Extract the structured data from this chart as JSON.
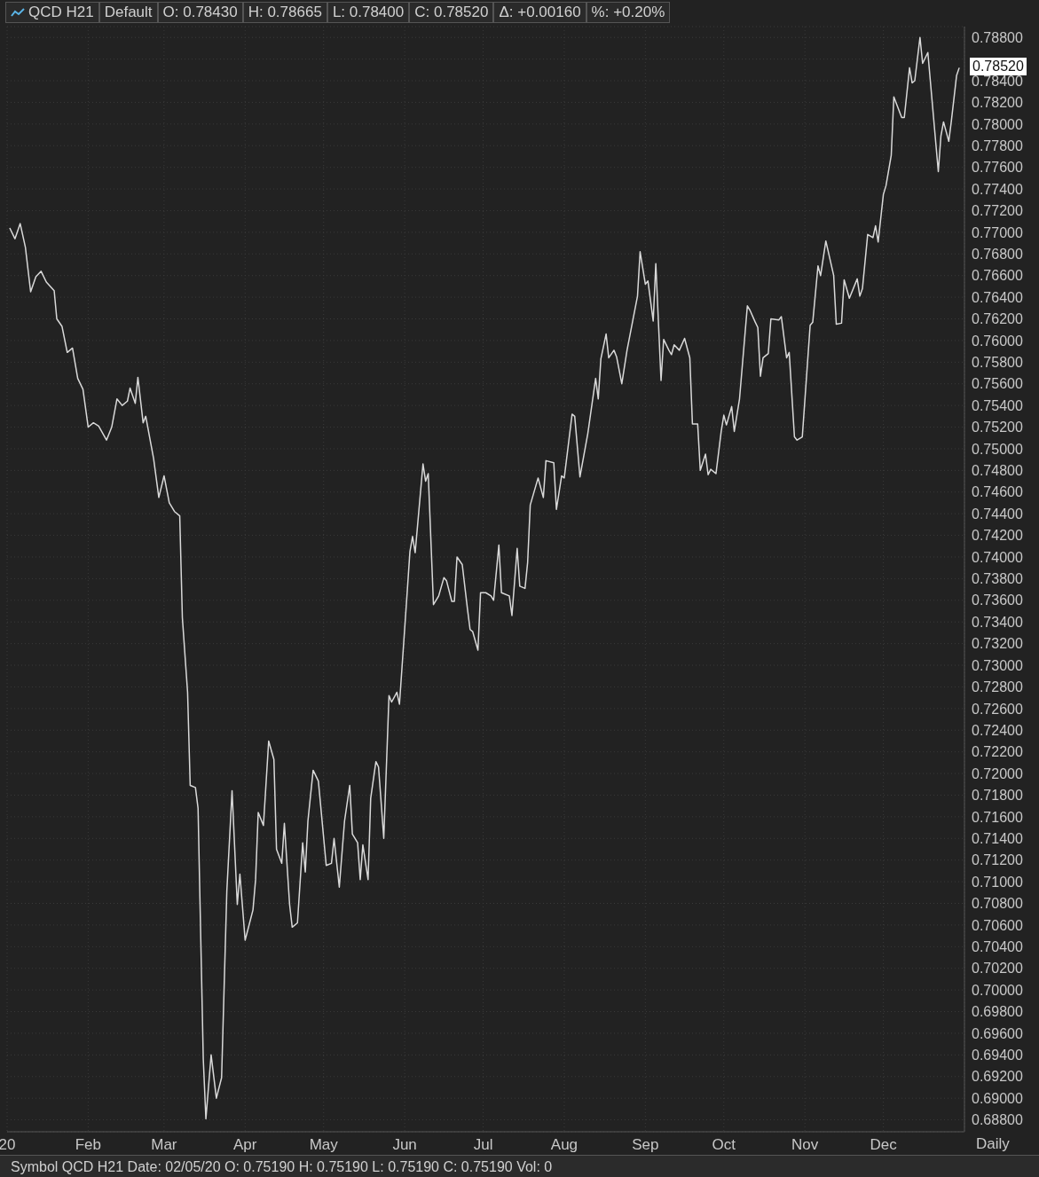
{
  "chart_data": {
    "type": "line",
    "title": "QCD H21",
    "annotations": [
      "Default",
      "O: 0.78430",
      "H: 0.78665",
      "L: 0.78400",
      "C: 0.78520",
      "Δ: +0.00160",
      "%: +0.20%",
      "Daily",
      "Symbol QCD H21 Date: 02/05/20 O: 0.75190 H: 0.75190 L: 0.75190 C: 0.75190 Vol: 0",
      "0.78520"
    ],
    "x": [
      "2020-01-02",
      "2020-01-04",
      "2020-01-06",
      "2020-01-08",
      "2020-01-10",
      "2020-01-12",
      "2020-01-14",
      "2020-01-16",
      "2020-01-19",
      "2020-01-20",
      "2020-01-22",
      "2020-01-24",
      "2020-01-26",
      "2020-01-28",
      "2020-01-30",
      "2020-02-01",
      "2020-02-03",
      "2020-02-05",
      "2020-02-08",
      "2020-02-10",
      "2020-02-12",
      "2020-02-14",
      "2020-02-16",
      "2020-02-17",
      "2020-02-19",
      "2020-02-20",
      "2020-02-22",
      "2020-02-23",
      "2020-02-26",
      "2020-02-28",
      "2020-03-01",
      "2020-03-03",
      "2020-03-05",
      "2020-03-07",
      "2020-03-08",
      "2020-03-10",
      "2020-03-11",
      "2020-03-13",
      "2020-03-14",
      "2020-03-16",
      "2020-03-17",
      "2020-03-19",
      "2020-03-21",
      "2020-03-23",
      "2020-03-25",
      "2020-03-27",
      "2020-03-29",
      "2020-03-30",
      "2020-04-01",
      "2020-04-04",
      "2020-04-05",
      "2020-04-06",
      "2020-04-08",
      "2020-04-10",
      "2020-04-12",
      "2020-04-13",
      "2020-04-15",
      "2020-04-16",
      "2020-04-18",
      "2020-04-19",
      "2020-04-21",
      "2020-04-23",
      "2020-04-24",
      "2020-04-25",
      "2020-04-27",
      "2020-04-29",
      "2020-05-02",
      "2020-05-04",
      "2020-05-05",
      "2020-05-07",
      "2020-05-09",
      "2020-05-11",
      "2020-05-12",
      "2020-05-14",
      "2020-05-15",
      "2020-05-16",
      "2020-05-18",
      "2020-05-19",
      "2020-05-21",
      "2020-05-22",
      "2020-05-24",
      "2020-05-26",
      "2020-05-27",
      "2020-05-29",
      "2020-05-30",
      "2020-06-02",
      "2020-06-03",
      "2020-06-04",
      "2020-06-05",
      "2020-06-08",
      "2020-06-09",
      "2020-06-10",
      "2020-06-12",
      "2020-06-14",
      "2020-06-16",
      "2020-06-17",
      "2020-06-19",
      "2020-06-20",
      "2020-06-21",
      "2020-06-23",
      "2020-06-25",
      "2020-06-26",
      "2020-06-27",
      "2020-06-29",
      "2020-06-30",
      "2020-07-02",
      "2020-07-04",
      "2020-07-05",
      "2020-07-07",
      "2020-07-08",
      "2020-07-11",
      "2020-07-12",
      "2020-07-14",
      "2020-07-15",
      "2020-07-17",
      "2020-07-18",
      "2020-07-19",
      "2020-07-22",
      "2020-07-24",
      "2020-07-25",
      "2020-07-28",
      "2020-07-29",
      "2020-07-31",
      "2020-08-01",
      "2020-08-04",
      "2020-08-05",
      "2020-08-07",
      "2020-08-10",
      "2020-08-13",
      "2020-08-14",
      "2020-08-15",
      "2020-08-17",
      "2020-08-18",
      "2020-08-20",
      "2020-08-21",
      "2020-08-23",
      "2020-08-25",
      "2020-08-29",
      "2020-08-30",
      "2020-09-01",
      "2020-09-02",
      "2020-09-04",
      "2020-09-05",
      "2020-09-07",
      "2020-09-08",
      "2020-09-10",
      "2020-09-11",
      "2020-09-12",
      "2020-09-14",
      "2020-09-16",
      "2020-09-18",
      "2020-09-19",
      "2020-09-21",
      "2020-09-22",
      "2020-09-24",
      "2020-09-25",
      "2020-09-26",
      "2020-09-28",
      "2020-09-30",
      "2020-10-01",
      "2020-10-02",
      "2020-10-04",
      "2020-10-05",
      "2020-10-07",
      "2020-10-10",
      "2020-10-11",
      "2020-10-13",
      "2020-10-14",
      "2020-10-15",
      "2020-10-16",
      "2020-10-18",
      "2020-10-19",
      "2020-10-22",
      "2020-10-23",
      "2020-10-25",
      "2020-10-26",
      "2020-10-28",
      "2020-10-29",
      "2020-10-31",
      "2020-11-03",
      "2020-11-04",
      "2020-11-06",
      "2020-11-07",
      "2020-11-09",
      "2020-11-12",
      "2020-11-13",
      "2020-11-15",
      "2020-11-16",
      "2020-11-18",
      "2020-11-21",
      "2020-11-22",
      "2020-11-23",
      "2020-11-25",
      "2020-11-27",
      "2020-11-28",
      "2020-11-29",
      "2020-12-01",
      "2020-12-02",
      "2020-12-04",
      "2020-12-05",
      "2020-12-08",
      "2020-12-09",
      "2020-12-11",
      "2020-12-12",
      "2020-12-13",
      "2020-12-15",
      "2020-12-16",
      "2020-12-18",
      "2020-12-22",
      "2020-12-23",
      "2020-12-24",
      "2020-12-26",
      "2020-12-27",
      "2020-12-29",
      "2020-12-30"
    ],
    "series": [
      {
        "color": "#d9d9d9",
        "values": [
          0.7704,
          0.7694,
          0.7708,
          0.7686,
          0.7645,
          0.7659,
          0.7664,
          0.7654,
          0.7646,
          0.762,
          0.7613,
          0.7589,
          0.7593,
          0.7565,
          0.7555,
          0.752,
          0.7524,
          0.7521,
          0.7508,
          0.752,
          0.7546,
          0.754,
          0.7544,
          0.7556,
          0.7542,
          0.7566,
          0.7524,
          0.753,
          0.7491,
          0.7455,
          0.7475,
          0.745,
          0.7442,
          0.7438,
          0.7344,
          0.7275,
          0.7189,
          0.7187,
          0.7168,
          0.6936,
          0.6881,
          0.694,
          0.69,
          0.6919,
          0.7091,
          0.7184,
          0.7079,
          0.7107,
          0.7046,
          0.7074,
          0.7102,
          0.7164,
          0.7152,
          0.723,
          0.7213,
          0.713,
          0.7117,
          0.7154,
          0.7079,
          0.7058,
          0.7062,
          0.7136,
          0.7109,
          0.7156,
          0.7203,
          0.7193,
          0.7115,
          0.7117,
          0.714,
          0.7095,
          0.7156,
          0.7189,
          0.7144,
          0.7136,
          0.7102,
          0.7134,
          0.7102,
          0.7177,
          0.7211,
          0.7206,
          0.714,
          0.7272,
          0.7266,
          0.7275,
          0.7264,
          0.7369,
          0.7405,
          0.7419,
          0.7404,
          0.7486,
          0.747,
          0.7477,
          0.7356,
          0.7364,
          0.7381,
          0.7378,
          0.7359,
          0.7359,
          0.74,
          0.7393,
          0.7352,
          0.7333,
          0.7331,
          0.7314,
          0.7367,
          0.7367,
          0.7364,
          0.736,
          0.7411,
          0.7367,
          0.7364,
          0.7346,
          0.7408,
          0.7373,
          0.7371,
          0.7395,
          0.7448,
          0.7473,
          0.7455,
          0.7489,
          0.7487,
          0.7444,
          0.7475,
          0.7473,
          0.7532,
          0.753,
          0.7474,
          0.7514,
          0.7565,
          0.7546,
          0.7583,
          0.7606,
          0.7584,
          0.7591,
          0.7585,
          0.756,
          0.7591,
          0.7641,
          0.7682,
          0.7652,
          0.7655,
          0.7618,
          0.7671,
          0.7563,
          0.7601,
          0.7591,
          0.7587,
          0.7596,
          0.7591,
          0.7602,
          0.7584,
          0.7523,
          0.7523,
          0.748,
          0.7495,
          0.7476,
          0.7481,
          0.7477,
          0.7516,
          0.7531,
          0.7522,
          0.7539,
          0.7516,
          0.7546,
          0.7632,
          0.7628,
          0.7617,
          0.7612,
          0.7567,
          0.7584,
          0.7588,
          0.762,
          0.7619,
          0.7622,
          0.7584,
          0.7589,
          0.7511,
          0.7508,
          0.7511,
          0.7614,
          0.7617,
          0.7669,
          0.766,
          0.7692,
          0.766,
          0.7615,
          0.7616,
          0.7656,
          0.7639,
          0.7657,
          0.7641,
          0.7648,
          0.7698,
          0.7695,
          0.7706,
          0.7691,
          0.7735,
          0.7743,
          0.7771,
          0.7825,
          0.7806,
          0.7806,
          0.7852,
          0.7838,
          0.784,
          0.788,
          0.7856,
          0.7866,
          0.7756,
          0.7789,
          0.7802,
          0.7784,
          0.7803,
          0.7845,
          0.7852
        ]
      }
    ],
    "xlim": [
      "2020-01-01",
      "2021-01-01"
    ],
    "xticks": [
      {
        "value": "2020-01-01",
        "label": "20"
      },
      {
        "value": "2020-02-01",
        "label": "Feb"
      },
      {
        "value": "2020-03-01",
        "label": "Mar"
      },
      {
        "value": "2020-04-01",
        "label": "Apr"
      },
      {
        "value": "2020-05-01",
        "label": "May"
      },
      {
        "value": "2020-06-01",
        "label": "Jun"
      },
      {
        "value": "2020-07-01",
        "label": "Jul"
      },
      {
        "value": "2020-08-01",
        "label": "Aug"
      },
      {
        "value": "2020-09-01",
        "label": "Sep"
      },
      {
        "value": "2020-10-01",
        "label": "Oct"
      },
      {
        "value": "2020-11-01",
        "label": "Nov"
      },
      {
        "value": "2020-12-01",
        "label": "Dec"
      }
    ],
    "ylim": [
      0.6869,
      0.789
    ],
    "yticks": [
      {
        "value": 0.688,
        "label": "0.68800"
      },
      {
        "value": 0.69,
        "label": "0.69000"
      },
      {
        "value": 0.692,
        "label": "0.69200"
      },
      {
        "value": 0.694,
        "label": "0.69400"
      },
      {
        "value": 0.696,
        "label": "0.69600"
      },
      {
        "value": 0.698,
        "label": "0.69800"
      },
      {
        "value": 0.7,
        "label": "0.70000"
      },
      {
        "value": 0.702,
        "label": "0.70200"
      },
      {
        "value": 0.704,
        "label": "0.70400"
      },
      {
        "value": 0.706,
        "label": "0.70600"
      },
      {
        "value": 0.708,
        "label": "0.70800"
      },
      {
        "value": 0.71,
        "label": "0.71000"
      },
      {
        "value": 0.712,
        "label": "0.71200"
      },
      {
        "value": 0.714,
        "label": "0.71400"
      },
      {
        "value": 0.716,
        "label": "0.71600"
      },
      {
        "value": 0.718,
        "label": "0.71800"
      },
      {
        "value": 0.72,
        "label": "0.72000"
      },
      {
        "value": 0.722,
        "label": "0.72200"
      },
      {
        "value": 0.724,
        "label": "0.72400"
      },
      {
        "value": 0.726,
        "label": "0.72600"
      },
      {
        "value": 0.728,
        "label": "0.72800"
      },
      {
        "value": 0.73,
        "label": "0.73000"
      },
      {
        "value": 0.732,
        "label": "0.73200"
      },
      {
        "value": 0.734,
        "label": "0.73400"
      },
      {
        "value": 0.736,
        "label": "0.73600"
      },
      {
        "value": 0.738,
        "label": "0.73800"
      },
      {
        "value": 0.74,
        "label": "0.74000"
      },
      {
        "value": 0.742,
        "label": "0.74200"
      },
      {
        "value": 0.744,
        "label": "0.74400"
      },
      {
        "value": 0.746,
        "label": "0.74600"
      },
      {
        "value": 0.748,
        "label": "0.74800"
      },
      {
        "value": 0.75,
        "label": "0.75000"
      },
      {
        "value": 0.752,
        "label": "0.75200"
      },
      {
        "value": 0.754,
        "label": "0.75400"
      },
      {
        "value": 0.756,
        "label": "0.75600"
      },
      {
        "value": 0.758,
        "label": "0.75800"
      },
      {
        "value": 0.76,
        "label": "0.76000"
      },
      {
        "value": 0.762,
        "label": "0.76200"
      },
      {
        "value": 0.764,
        "label": "0.76400"
      },
      {
        "value": 0.766,
        "label": "0.76600"
      },
      {
        "value": 0.768,
        "label": "0.76800"
      },
      {
        "value": 0.77,
        "label": "0.77000"
      },
      {
        "value": 0.772,
        "label": "0.77200"
      },
      {
        "value": 0.774,
        "label": "0.77400"
      },
      {
        "value": 0.776,
        "label": "0.77600"
      },
      {
        "value": 0.778,
        "label": "0.77800"
      },
      {
        "value": 0.78,
        "label": "0.78000"
      },
      {
        "value": 0.782,
        "label": "0.78200"
      },
      {
        "value": 0.784,
        "label": "0.78400"
      },
      {
        "value": 0.786,
        "label": null
      },
      {
        "value": 0.788,
        "label": "0.78800"
      }
    ],
    "grid": true,
    "marker": "none",
    "line_style": "solid"
  }
}
